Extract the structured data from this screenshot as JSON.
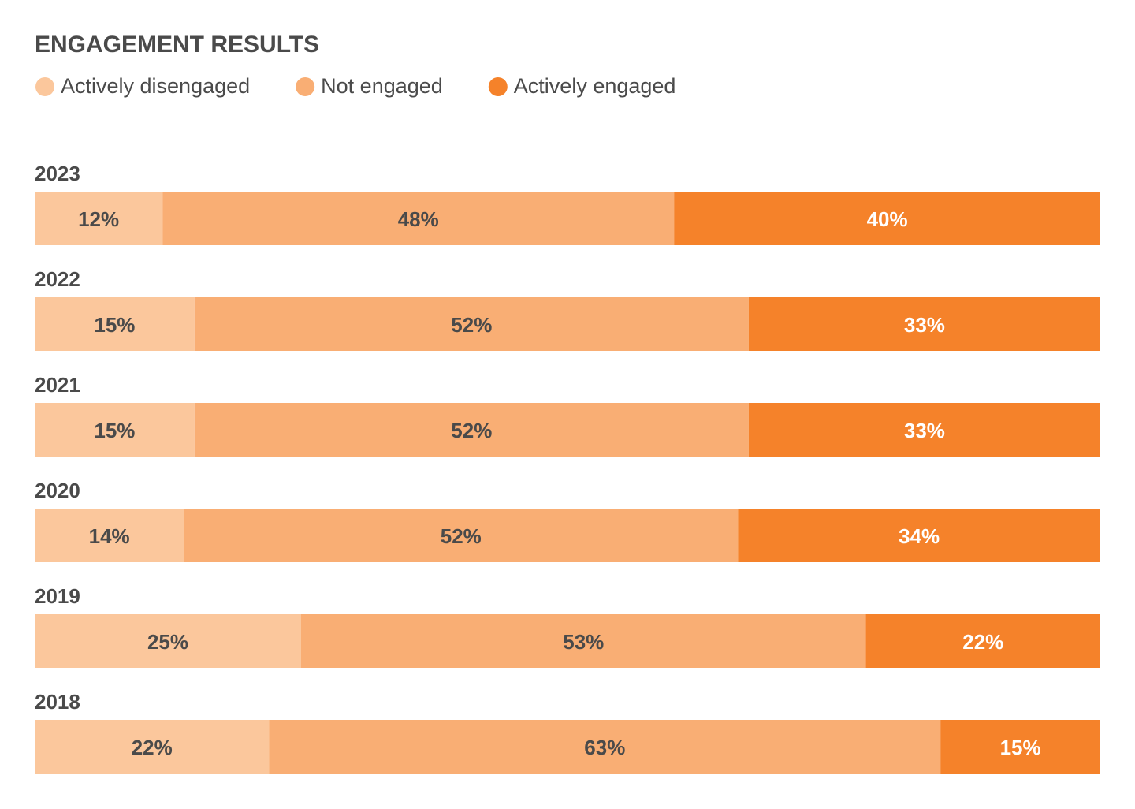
{
  "chart_data": {
    "type": "stacked-bar",
    "title": "ENGAGEMENT RESULTS",
    "categories": [
      "2023",
      "2022",
      "2021",
      "2020",
      "2019",
      "2018"
    ],
    "series": [
      {
        "name": "Actively disengaged",
        "color": "#fbc79c",
        "label_color": "#4a4a4a",
        "values": [
          12,
          15,
          15,
          14,
          25,
          22
        ],
        "value_labels": [
          "12%",
          "15%",
          "15%",
          "14%",
          "25%",
          "22%"
        ]
      },
      {
        "name": "Not engaged",
        "color": "#f9ae74",
        "label_color": "#4a4a4a",
        "values": [
          48,
          52,
          52,
          52,
          53,
          63
        ],
        "value_labels": [
          "48%",
          "52%",
          "52%",
          "52%",
          "53%",
          "63%"
        ]
      },
      {
        "name": "Actively engaged",
        "color": "#f5822a",
        "label_color": "#ffffff",
        "values": [
          40,
          33,
          33,
          34,
          22,
          15
        ],
        "value_labels": [
          "40%",
          "33%",
          "33%",
          "34%",
          "22%",
          "15%"
        ]
      }
    ],
    "xlim": [
      0,
      100
    ]
  }
}
